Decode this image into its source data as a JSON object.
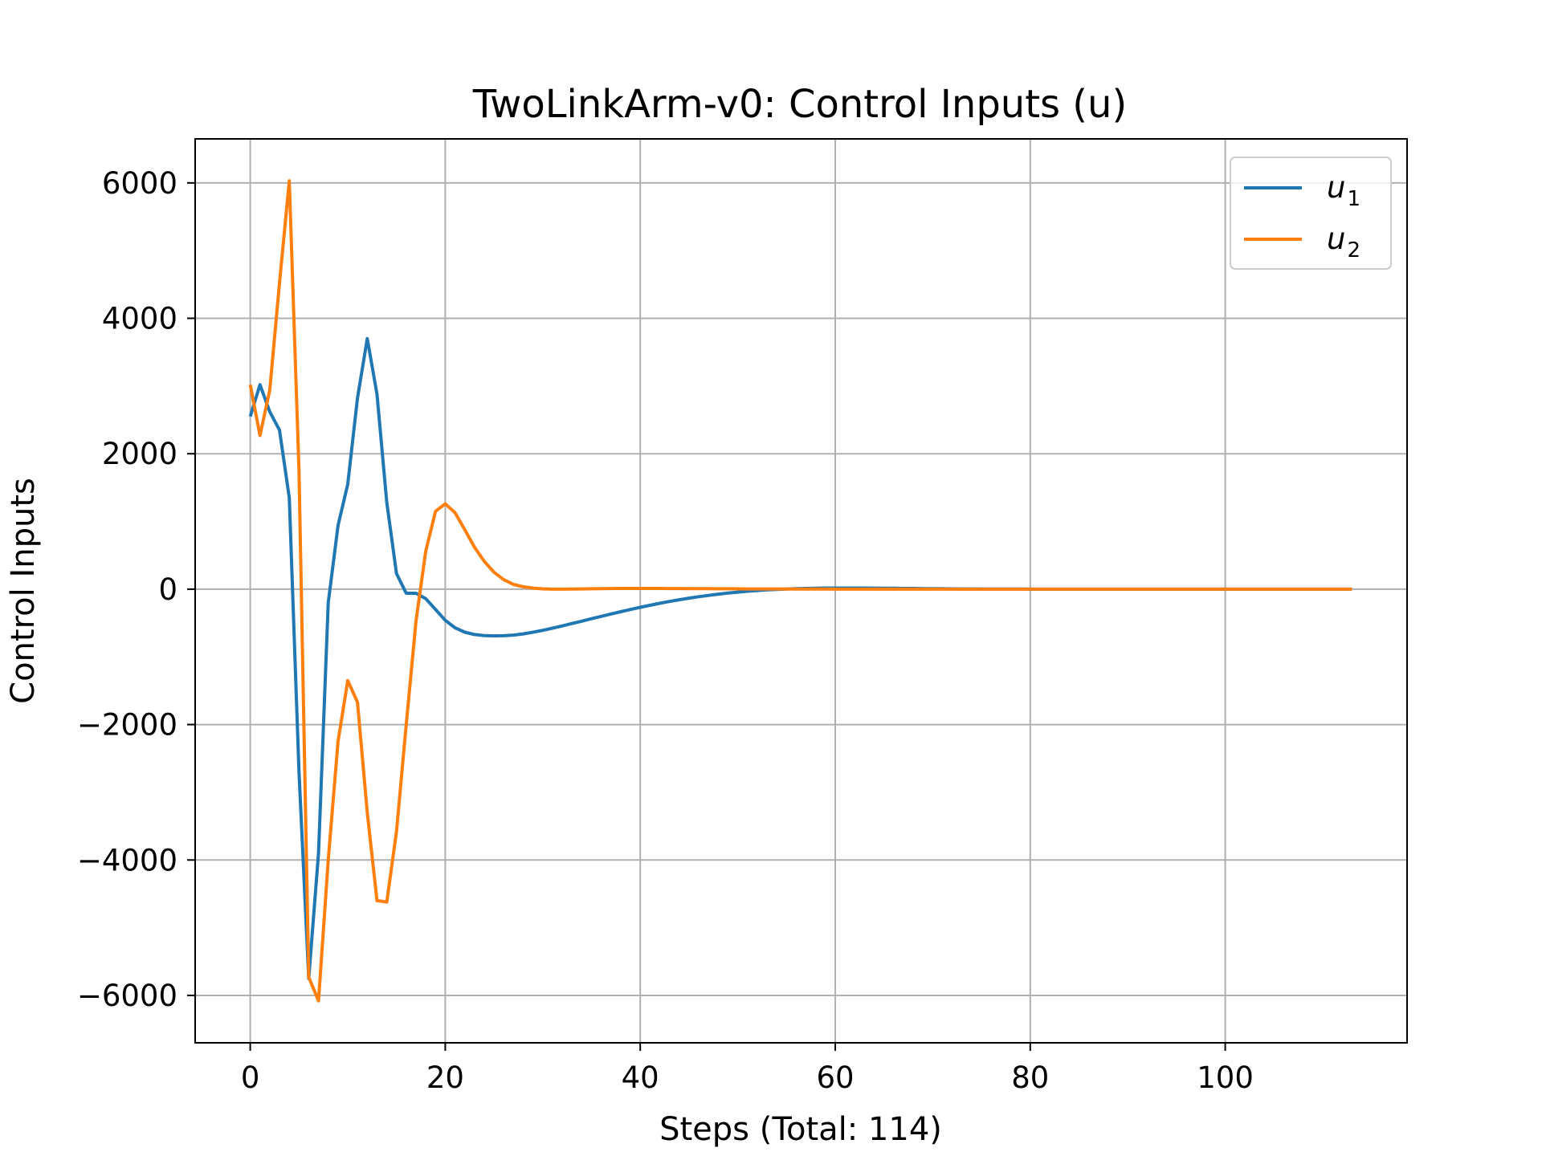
{
  "chart_data": {
    "type": "line",
    "title": "TwoLinkArm-v0: Control Inputs (u)",
    "xlabel": "Steps (Total: 114)",
    "ylabel": "Control Inputs",
    "xlim": [
      -5.65,
      118.65
    ],
    "ylim": [
      -6700,
      6650
    ],
    "xticks": [
      0,
      20,
      40,
      60,
      80,
      100
    ],
    "yticks": [
      -6000,
      -4000,
      -2000,
      0,
      2000,
      4000,
      6000
    ],
    "xtick_labels": [
      "0",
      "20",
      "40",
      "60",
      "80",
      "100"
    ],
    "ytick_labels": [
      "−6000",
      "−4000",
      "−2000",
      "0",
      "2000",
      "4000",
      "6000"
    ],
    "grid": true,
    "legend_position": "upper right",
    "series": [
      {
        "name": "u",
        "subscript": "1",
        "color": "#1f77b4",
        "x": [
          0,
          1,
          2,
          3,
          4,
          5,
          6,
          7,
          8,
          9,
          10,
          11,
          12,
          13,
          14,
          15,
          16,
          17,
          18,
          19,
          20,
          21,
          22,
          23,
          24,
          25,
          26,
          27,
          28,
          29,
          30,
          31,
          32,
          33,
          34,
          35,
          36,
          37,
          38,
          39,
          40,
          41,
          42,
          43,
          44,
          45,
          46,
          47,
          48,
          49,
          50,
          51,
          52,
          53,
          54,
          55,
          56,
          57,
          58,
          59,
          60,
          61,
          62,
          63,
          64,
          65,
          66,
          67,
          68,
          69,
          70,
          71,
          72,
          73,
          74,
          75,
          76,
          77,
          78,
          79,
          80,
          81,
          82,
          83,
          84,
          85,
          86,
          87,
          88,
          89,
          90,
          91,
          92,
          93,
          94,
          95,
          96,
          97,
          98,
          99,
          100,
          101,
          102,
          103,
          104,
          105,
          106,
          107,
          108,
          109,
          110,
          111,
          112,
          113
        ],
        "y": [
          2550,
          3020,
          2620,
          2350,
          1350,
          -2700,
          -5750,
          -3900,
          -200,
          940,
          1550,
          2820,
          3700,
          2880,
          1280,
          230,
          -60,
          -60,
          -140,
          -300,
          -460,
          -570,
          -635,
          -670,
          -685,
          -690,
          -688,
          -678,
          -660,
          -636,
          -608,
          -576,
          -543,
          -508,
          -473,
          -437,
          -402,
          -367,
          -333,
          -300,
          -268,
          -238,
          -209,
          -182,
          -157,
          -133,
          -111,
          -92,
          -74,
          -58,
          -44,
          -31,
          -20,
          -11,
          -4,
          2,
          7,
          11,
          14,
          16,
          17,
          17,
          17,
          16,
          15,
          14,
          13,
          11,
          10,
          8,
          7,
          6,
          5,
          4,
          3,
          2,
          2,
          1,
          1,
          1,
          0,
          0,
          0,
          0,
          0,
          0,
          0,
          0,
          0,
          0,
          0,
          0,
          0,
          0,
          0,
          0,
          0,
          0,
          0,
          0,
          0,
          0,
          0,
          0,
          0,
          0,
          0,
          0,
          0,
          0,
          0,
          0,
          0,
          0
        ]
      },
      {
        "name": "u",
        "subscript": "2",
        "color": "#ff7f0e",
        "x": [
          0,
          1,
          2,
          3,
          4,
          5,
          6,
          7,
          8,
          9,
          10,
          11,
          12,
          13,
          14,
          15,
          16,
          17,
          18,
          19,
          20,
          21,
          22,
          23,
          24,
          25,
          26,
          27,
          28,
          29,
          30,
          31,
          32,
          33,
          34,
          35,
          36,
          37,
          38,
          39,
          40,
          41,
          42,
          43,
          44,
          45,
          46,
          47,
          48,
          49,
          50,
          51,
          52,
          53,
          54,
          55,
          56,
          57,
          58,
          59,
          60,
          61,
          62,
          63,
          64,
          65,
          66,
          67,
          68,
          69,
          70,
          71,
          72,
          73,
          74,
          75,
          76,
          77,
          78,
          79,
          80,
          81,
          82,
          83,
          84,
          85,
          86,
          87,
          88,
          89,
          90,
          91,
          92,
          93,
          94,
          95,
          96,
          97,
          98,
          99,
          100,
          101,
          102,
          103,
          104,
          105,
          106,
          107,
          108,
          109,
          110,
          111,
          112,
          113
        ],
        "y": [
          3020,
          2270,
          2940,
          4520,
          6030,
          1750,
          -5730,
          -6080,
          -4000,
          -2250,
          -1350,
          -1670,
          -3300,
          -4600,
          -4620,
          -3580,
          -2000,
          -470,
          560,
          1150,
          1260,
          1130,
          880,
          620,
          410,
          250,
          140,
          70,
          35,
          15,
          5,
          0,
          0,
          2,
          4,
          6,
          8,
          9,
          10,
          10,
          10,
          10,
          10,
          9,
          9,
          8,
          8,
          7,
          6,
          6,
          5,
          4,
          4,
          3,
          3,
          2,
          2,
          1,
          1,
          1,
          0,
          0,
          0,
          0,
          0,
          0,
          0,
          0,
          0,
          0,
          0,
          0,
          0,
          0,
          0,
          0,
          0,
          0,
          0,
          0,
          0,
          0,
          0,
          0,
          0,
          0,
          0,
          0,
          0,
          0,
          0,
          0,
          0,
          0,
          0,
          0,
          0,
          0,
          0,
          0,
          0,
          0,
          0,
          0,
          0,
          0,
          0,
          0,
          0,
          0,
          0,
          0,
          0,
          0
        ]
      }
    ]
  }
}
